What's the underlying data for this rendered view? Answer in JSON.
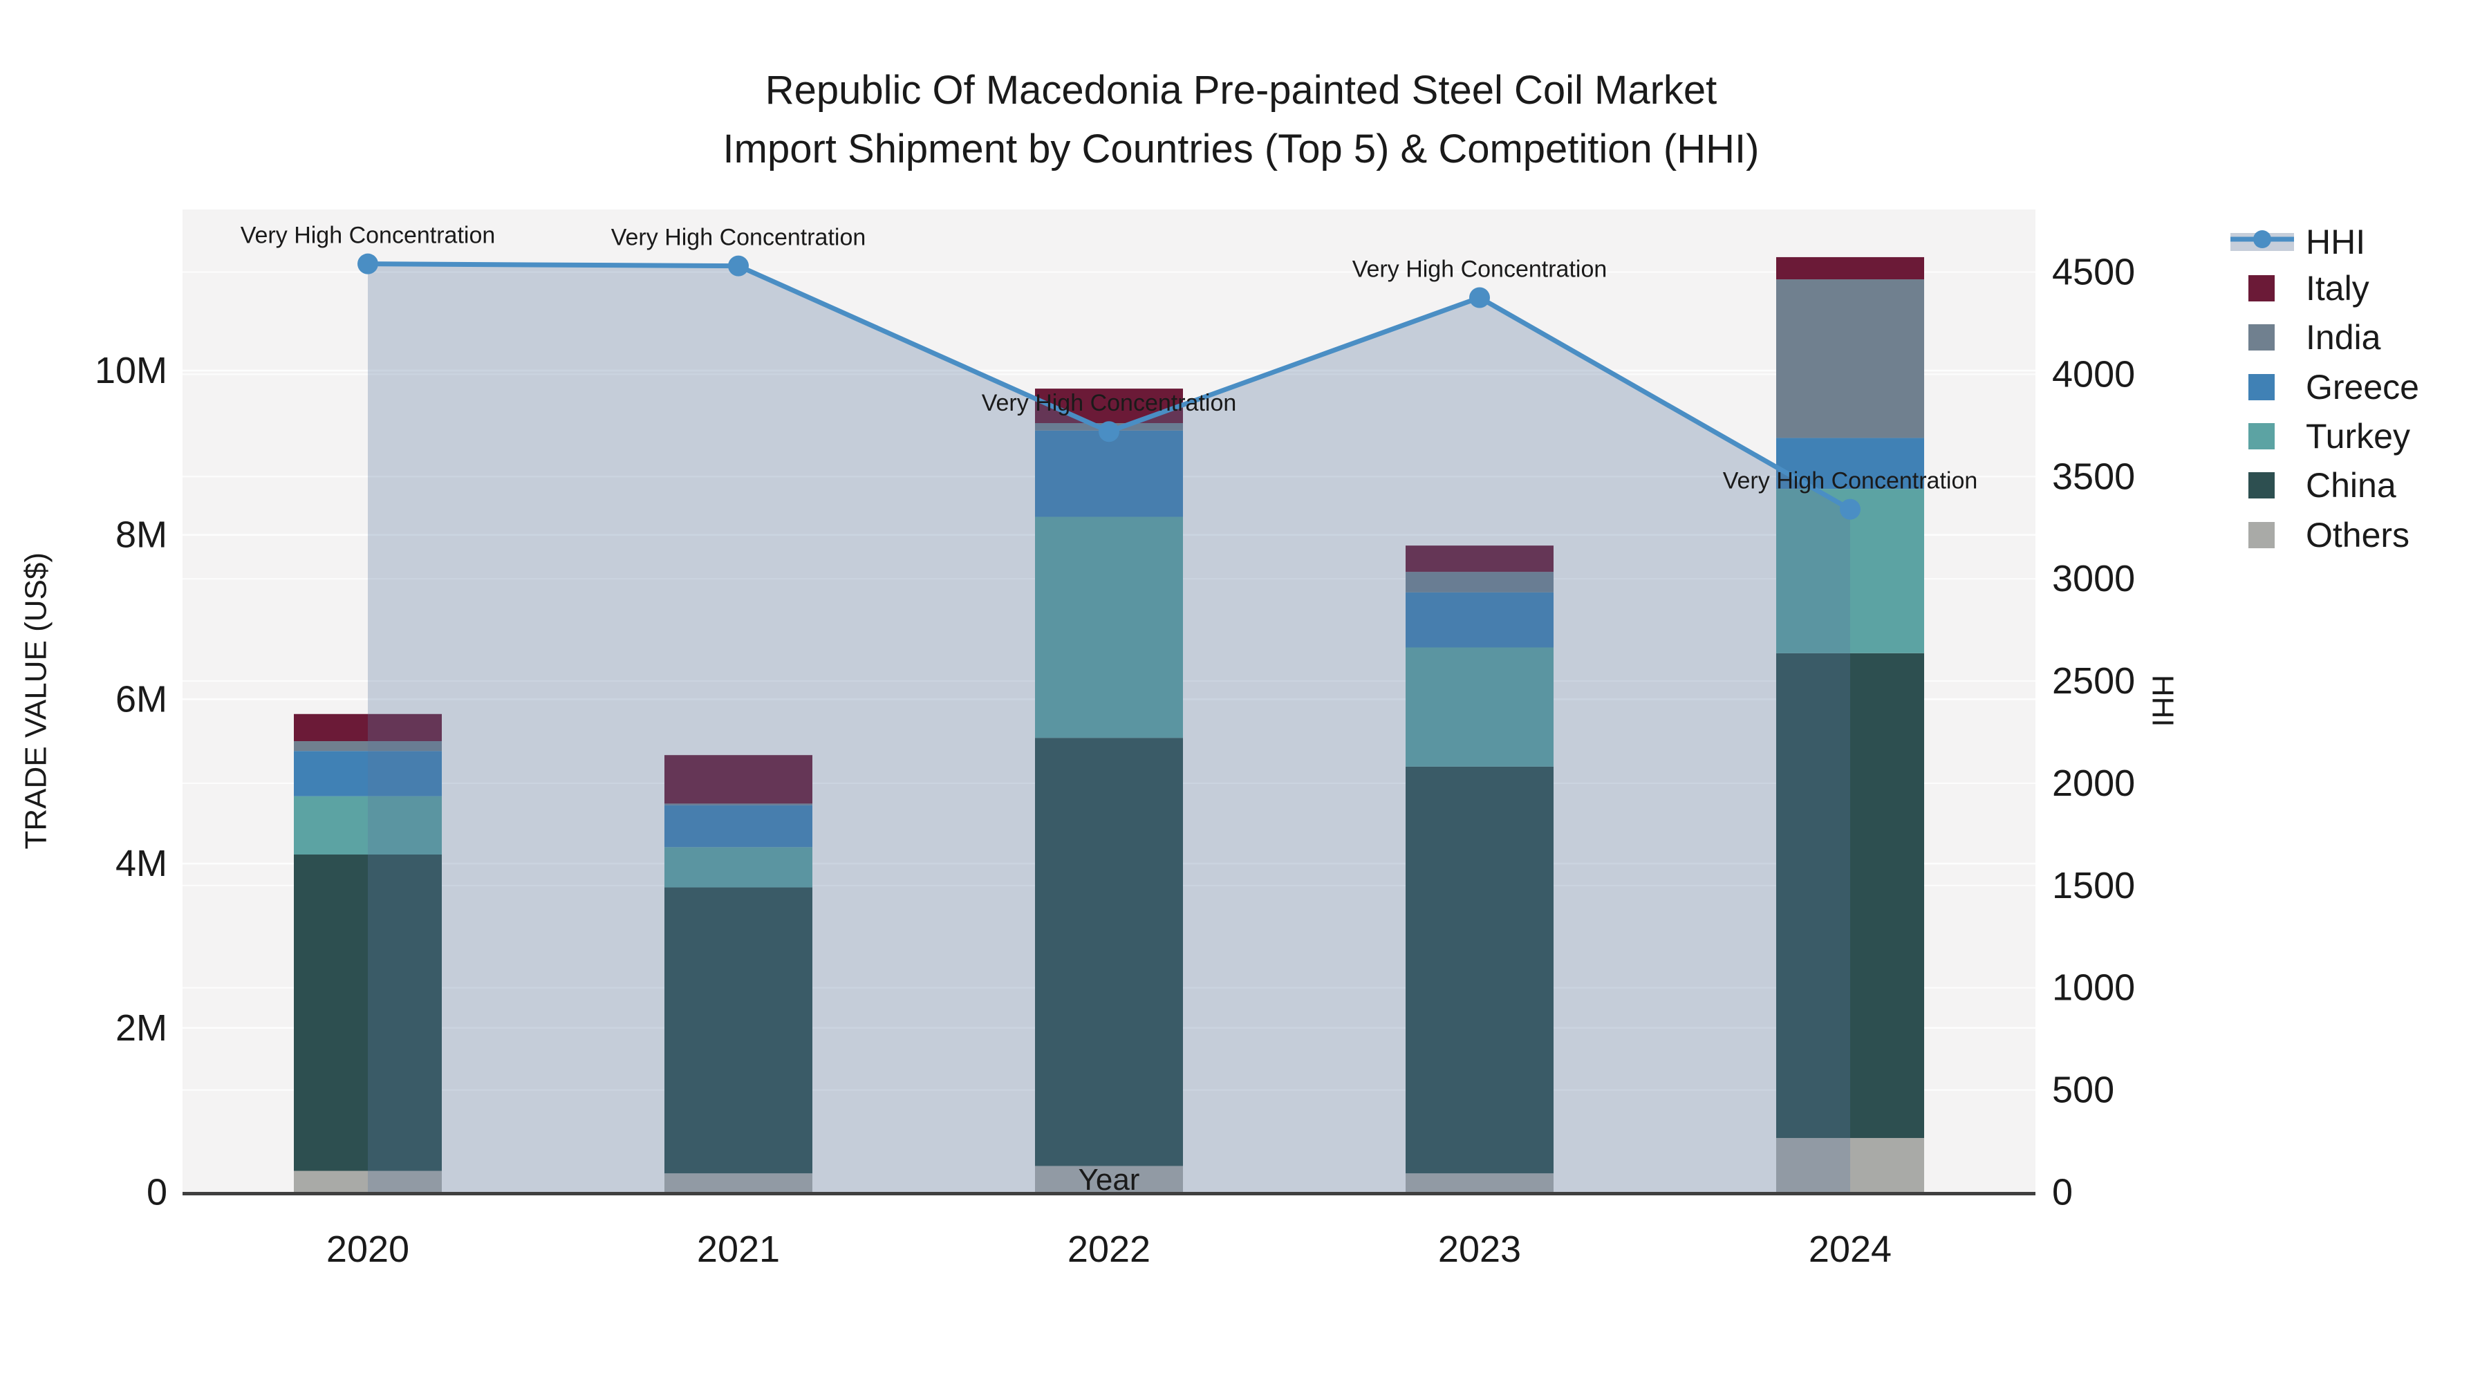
{
  "title": {
    "line1": "Republic Of Macedonia Pre-painted Steel Coil Market",
    "line2": "Import Shipment by Countries (Top 5) & Competition (HHI)"
  },
  "axes": {
    "x": {
      "title": "Year",
      "ticks": [
        "2020",
        "2021",
        "2022",
        "2023",
        "2024"
      ]
    },
    "y_left": {
      "title": "TRADE VALUE (US$)",
      "ticks": [
        "0",
        "2M",
        "4M",
        "6M",
        "8M",
        "10M"
      ],
      "tick_values_musd": [
        0,
        2,
        4,
        6,
        8,
        10
      ]
    },
    "y_right": {
      "title": "HHI",
      "ticks": [
        "0",
        "500",
        "1000",
        "1500",
        "2000",
        "2500",
        "3000",
        "3500",
        "4000",
        "4500"
      ],
      "tick_values": [
        0,
        500,
        1000,
        1500,
        2000,
        2500,
        3000,
        3500,
        4000,
        4500
      ]
    }
  },
  "legend": {
    "items": [
      {
        "label": "HHI",
        "type": "line",
        "color": "#4A8EC4"
      },
      {
        "label": "Italy",
        "type": "swatch",
        "color": "#6B1A37"
      },
      {
        "label": "India",
        "type": "swatch",
        "color": "#70808F"
      },
      {
        "label": "Greece",
        "type": "swatch",
        "color": "#4081B5"
      },
      {
        "label": "Turkey",
        "type": "swatch",
        "color": "#5CA3A3"
      },
      {
        "label": "China",
        "type": "swatch",
        "color": "#2D4F50"
      },
      {
        "label": "Others",
        "type": "swatch",
        "color": "#A9AAA7"
      }
    ]
  },
  "chart_data": {
    "type": "combo",
    "subtype": "stacked-bar-with-line",
    "unit_left": "US$ millions",
    "categories": [
      "2020",
      "2021",
      "2022",
      "2023",
      "2024"
    ],
    "bar_series": [
      {
        "name": "Others",
        "color": "#A9AAA7",
        "values": [
          0.26,
          0.23,
          0.32,
          0.23,
          0.66
        ]
      },
      {
        "name": "China",
        "color": "#2D4F50",
        "values": [
          3.85,
          3.48,
          5.21,
          4.95,
          5.9
        ]
      },
      {
        "name": "Turkey",
        "color": "#5CA3A3",
        "values": [
          0.71,
          0.49,
          2.69,
          1.45,
          2.0
        ]
      },
      {
        "name": "Greece",
        "color": "#4081B5",
        "values": [
          0.55,
          0.51,
          1.05,
          0.67,
          0.62
        ]
      },
      {
        "name": "India",
        "color": "#70808F",
        "values": [
          0.12,
          0.02,
          0.09,
          0.25,
          1.93
        ]
      },
      {
        "name": "Italy",
        "color": "#6B1A37",
        "values": [
          0.33,
          0.59,
          0.42,
          0.32,
          0.27
        ]
      }
    ],
    "bar_totals_musd": [
      5.82,
      5.32,
      9.78,
      7.87,
      11.38
    ],
    "line_series": {
      "name": "HHI",
      "axis": "right",
      "color": "#4A8EC4",
      "fill_color": "rgba(90,120,160,0.30)",
      "values": [
        4540,
        4530,
        3720,
        4375,
        3340
      ]
    },
    "annotations": [
      {
        "text": "Very High Concentration",
        "year": "2020",
        "hhi": 4540
      },
      {
        "text": "Very High Concentration",
        "year": "2021",
        "hhi": 4530
      },
      {
        "text": "Very High Concentration",
        "year": "2022",
        "hhi": 3720
      },
      {
        "text": "Very High Concentration",
        "year": "2023",
        "hhi": 4375
      },
      {
        "text": "Very High Concentration",
        "year": "2024",
        "hhi": 3340
      }
    ],
    "layout": {
      "y_left_range_musd": [
        0,
        11.96
      ],
      "y_right_range": [
        0,
        4806
      ],
      "grid": true,
      "legend_position": "right",
      "plot_bg": "#F4F3F3",
      "xaxis_line_color": "#3F3F3F",
      "grid_color": "#FFFFFF",
      "text_color": "#1A1A1A"
    }
  }
}
